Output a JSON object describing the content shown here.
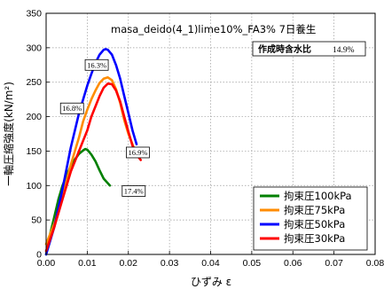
{
  "chart_data": {
    "type": "line",
    "title": "masa_deido(4_1)lime10%_FA3%  7日養生",
    "xlabel": "ひずみ ε",
    "ylabel": "一軸圧縮強度(kN/m²)",
    "xlim": [
      0,
      0.08
    ],
    "ylim": [
      0,
      350
    ],
    "x_ticks": [
      "0.00",
      "0.01",
      "0.02",
      "0.03",
      "0.04",
      "0.05",
      "0.06",
      "0.07",
      "0.08"
    ],
    "y_ticks": [
      "0",
      "50",
      "100",
      "150",
      "200",
      "250",
      "300",
      "350"
    ],
    "grid": true,
    "legend_position": "bottom-right",
    "info_box": {
      "label": "作成時含水比",
      "value": "14.9%"
    },
    "series": [
      {
        "name": "拘束圧100kPa",
        "color": "#008000",
        "points": [
          [
            0,
            0
          ],
          [
            0.001,
            30
          ],
          [
            0.002,
            55
          ],
          [
            0.003,
            80
          ],
          [
            0.004,
            100
          ],
          [
            0.005,
            115
          ],
          [
            0.006,
            128
          ],
          [
            0.007,
            138
          ],
          [
            0.008,
            146
          ],
          [
            0.009,
            151
          ],
          [
            0.0095,
            153
          ],
          [
            0.01,
            152
          ],
          [
            0.011,
            145
          ],
          [
            0.012,
            135
          ],
          [
            0.013,
            122
          ],
          [
            0.014,
            110
          ],
          [
            0.0155,
            100
          ]
        ]
      },
      {
        "name": "拘束圧75kPa",
        "color": "#FF8C00",
        "points": [
          [
            0,
            15
          ],
          [
            0.002,
            45
          ],
          [
            0.004,
            85
          ],
          [
            0.006,
            130
          ],
          [
            0.008,
            170
          ],
          [
            0.009,
            193
          ],
          [
            0.01,
            210
          ],
          [
            0.011,
            225
          ],
          [
            0.012,
            238
          ],
          [
            0.013,
            249
          ],
          [
            0.014,
            255
          ],
          [
            0.015,
            257
          ],
          [
            0.016,
            253
          ],
          [
            0.017,
            240
          ],
          [
            0.018,
            220
          ],
          [
            0.019,
            195
          ],
          [
            0.02,
            175
          ],
          [
            0.021,
            160
          ],
          [
            0.0215,
            152
          ]
        ]
      },
      {
        "name": "拘束圧50kPa",
        "color": "#0000FF",
        "points": [
          [
            0,
            0
          ],
          [
            0.002,
            40
          ],
          [
            0.004,
            95
          ],
          [
            0.006,
            155
          ],
          [
            0.008,
            205
          ],
          [
            0.01,
            245
          ],
          [
            0.011,
            262
          ],
          [
            0.012,
            278
          ],
          [
            0.013,
            290
          ],
          [
            0.014,
            297
          ],
          [
            0.0145,
            298
          ],
          [
            0.015,
            297
          ],
          [
            0.016,
            290
          ],
          [
            0.017,
            275
          ],
          [
            0.018,
            255
          ],
          [
            0.019,
            230
          ],
          [
            0.02,
            205
          ],
          [
            0.021,
            180
          ],
          [
            0.022,
            160
          ]
        ]
      },
      {
        "name": "拘束圧30kPa",
        "color": "#FF0000",
        "points": [
          [
            0,
            5
          ],
          [
            0.002,
            40
          ],
          [
            0.004,
            80
          ],
          [
            0.006,
            120
          ],
          [
            0.008,
            150
          ],
          [
            0.009,
            165
          ],
          [
            0.01,
            180
          ],
          [
            0.011,
            200
          ],
          [
            0.012,
            215
          ],
          [
            0.013,
            230
          ],
          [
            0.014,
            242
          ],
          [
            0.015,
            248
          ],
          [
            0.016,
            247
          ],
          [
            0.017,
            238
          ],
          [
            0.018,
            222
          ],
          [
            0.019,
            200
          ],
          [
            0.02,
            178
          ],
          [
            0.021,
            158
          ],
          [
            0.022,
            145
          ],
          [
            0.023,
            137
          ]
        ]
      }
    ],
    "annotations": [
      {
        "text": "16.3%",
        "x": 0.0095,
        "y": 275
      },
      {
        "text": "16.8%",
        "x": 0.0035,
        "y": 212
      },
      {
        "text": "16.9%",
        "x": 0.0195,
        "y": 148
      },
      {
        "text": "17.4%",
        "x": 0.0185,
        "y": 92
      }
    ]
  }
}
